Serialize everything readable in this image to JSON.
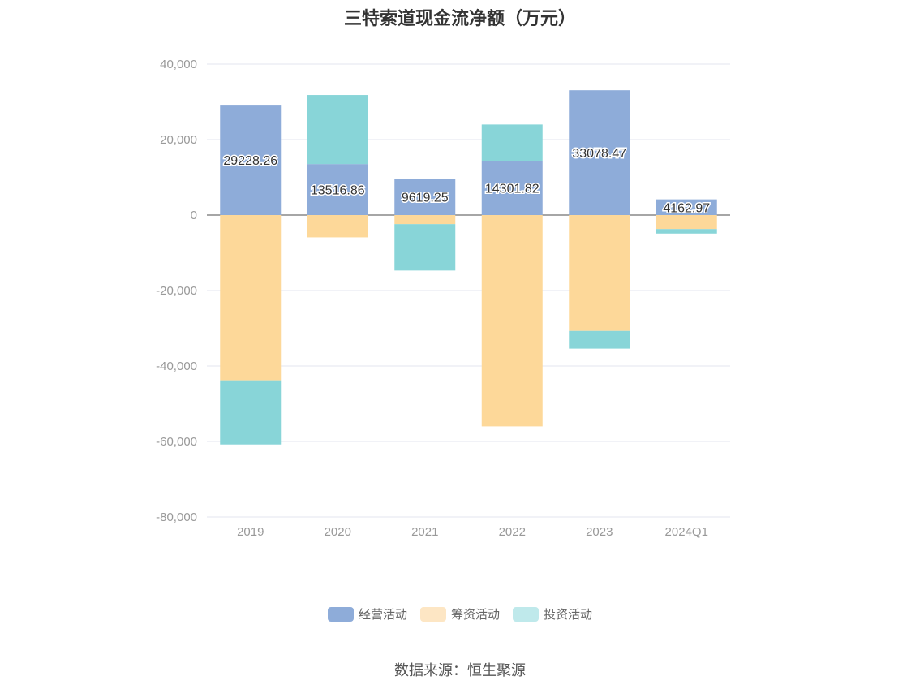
{
  "chart_data": {
    "type": "bar",
    "stacked": true,
    "title": "三特索道现金流净额（万元）",
    "categories": [
      "2019",
      "2020",
      "2021",
      "2022",
      "2023",
      "2024Q1"
    ],
    "series": [
      {
        "name": "经营活动",
        "color": "#8eacd9",
        "legend_color": "#8eacd9",
        "values": [
          29228.26,
          13516.86,
          9619.25,
          14301.82,
          33078.47,
          4162.97
        ]
      },
      {
        "name": "筹资活动",
        "color": "#fdd899",
        "legend_color": "#fde6c4",
        "values": [
          -43800,
          -5900,
          -2400,
          -56000,
          -30700,
          -3700
        ]
      },
      {
        "name": "投资活动",
        "color": "#88d5d8",
        "legend_color": "#bfe9eb",
        "values": [
          -17000,
          18300,
          -12300,
          9700,
          -4700,
          -1200
        ]
      }
    ],
    "data_labels_series": "经营活动",
    "ylim": [
      -80000,
      40000
    ],
    "yticks": [
      40000,
      20000,
      0,
      -20000,
      -40000,
      -60000,
      -80000
    ],
    "ytick_labels": [
      "40,000",
      "20,000",
      "0",
      "-20,000",
      "-40,000",
      "-60,000",
      "-80,000"
    ],
    "grid": true,
    "legend_position": "bottom",
    "xlabel": "",
    "ylabel": ""
  },
  "source_text": "数据来源：恒生聚源"
}
